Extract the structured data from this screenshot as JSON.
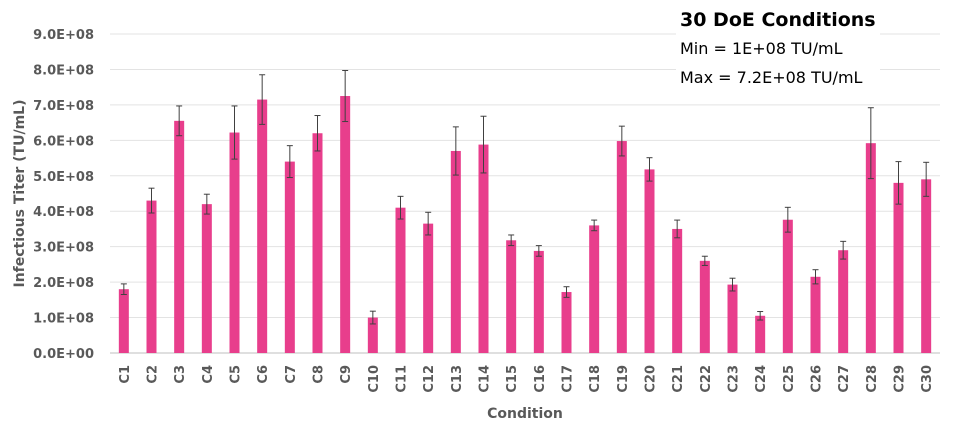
{
  "chart_data": {
    "type": "bar",
    "xlabel": "Condition",
    "ylabel": "Infectious Titer (TU/mL)",
    "ylim": [
      0,
      900000000
    ],
    "ytick_labels": [
      "0.0E+00",
      "1.0E+08",
      "2.0E+08",
      "3.0E+08",
      "4.0E+08",
      "5.0E+08",
      "6.0E+08",
      "7.0E+08",
      "8.0E+08",
      "9.0E+08"
    ],
    "grid": true,
    "bar_color": "#E83E8C",
    "categories": [
      "C1",
      "C2",
      "C3",
      "C4",
      "C5",
      "C6",
      "C7",
      "C8",
      "C9",
      "C10",
      "C11",
      "C12",
      "C13",
      "C14",
      "C15",
      "C16",
      "C17",
      "C18",
      "C19",
      "C20",
      "C21",
      "C22",
      "C23",
      "C24",
      "C25",
      "C26",
      "C27",
      "C28",
      "C29",
      "C30"
    ],
    "values": [
      180000000,
      430000000,
      655000000,
      420000000,
      622000000,
      715000000,
      540000000,
      620000000,
      725000000,
      100000000,
      410000000,
      365000000,
      570000000,
      588000000,
      318000000,
      288000000,
      172000000,
      360000000,
      598000000,
      518000000,
      350000000,
      260000000,
      193000000,
      105000000,
      376000000,
      215000000,
      290000000,
      592000000,
      480000000,
      490000000
    ],
    "errors": [
      15000000,
      35000000,
      42000000,
      28000000,
      75000000,
      70000000,
      45000000,
      50000000,
      72000000,
      18000000,
      32000000,
      32000000,
      68000000,
      80000000,
      15000000,
      15000000,
      15000000,
      15000000,
      42000000,
      33000000,
      25000000,
      13000000,
      18000000,
      12000000,
      35000000,
      20000000,
      25000000,
      100000000,
      60000000,
      48000000
    ]
  },
  "annotation": {
    "title": "30 DoE Conditions",
    "min_text": "Min = 1E+08 TU/mL",
    "max_text": "Max = 7.2E+08 TU/mL"
  }
}
